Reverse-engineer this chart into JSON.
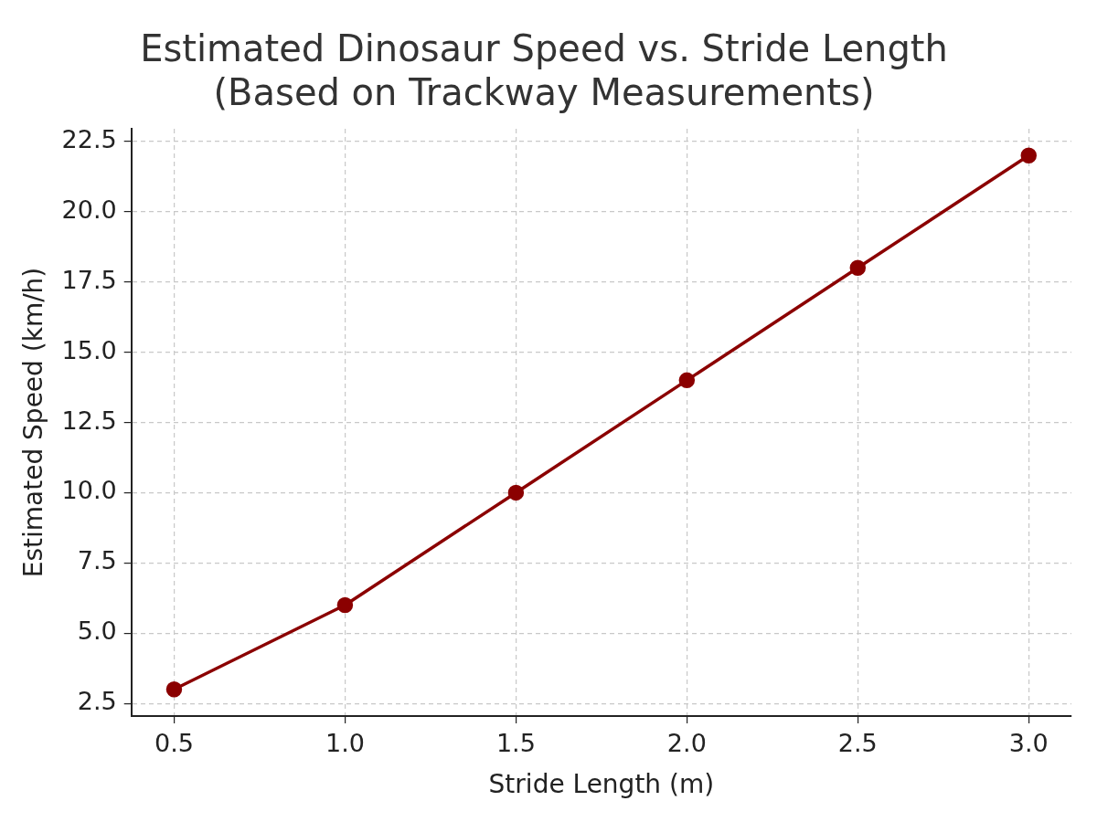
{
  "chart_data": {
    "type": "line",
    "title": "Estimated Dinosaur Speed vs. Stride Length\n(Based on Trackway Measurements)",
    "xlabel": "Stride Length (m)",
    "ylabel": "Estimated Speed (km/h)",
    "x": [
      0.5,
      1.0,
      1.5,
      2.0,
      2.5,
      3.0
    ],
    "series": [
      {
        "color": "#8b0000",
        "values": [
          3,
          6,
          10,
          14,
          18,
          22
        ]
      }
    ],
    "xlim": [
      0.375,
      3.125
    ],
    "xticks": [
      {
        "value": 0.5,
        "label": "0.5"
      },
      {
        "value": 1.0,
        "label": "1.0"
      },
      {
        "value": 1.5,
        "label": "1.5"
      },
      {
        "value": 2.0,
        "label": "2.0"
      },
      {
        "value": 2.5,
        "label": "2.5"
      },
      {
        "value": 3.0,
        "label": "3.0"
      }
    ],
    "ylim": [
      2.05,
      22.95
    ],
    "yticks": [
      {
        "value": 2.5,
        "label": "2.5"
      },
      {
        "value": 5.0,
        "label": "5.0"
      },
      {
        "value": 7.5,
        "label": "7.5"
      },
      {
        "value": 10.0,
        "label": "10.0"
      },
      {
        "value": 12.5,
        "label": "12.5"
      },
      {
        "value": 15.0,
        "label": "15.0"
      },
      {
        "value": 17.5,
        "label": "17.5"
      },
      {
        "value": 20.0,
        "label": "20.0"
      },
      {
        "value": 22.5,
        "label": "22.5"
      }
    ],
    "grid": true,
    "marker": "circle",
    "line_style": "solid",
    "legend": false
  }
}
